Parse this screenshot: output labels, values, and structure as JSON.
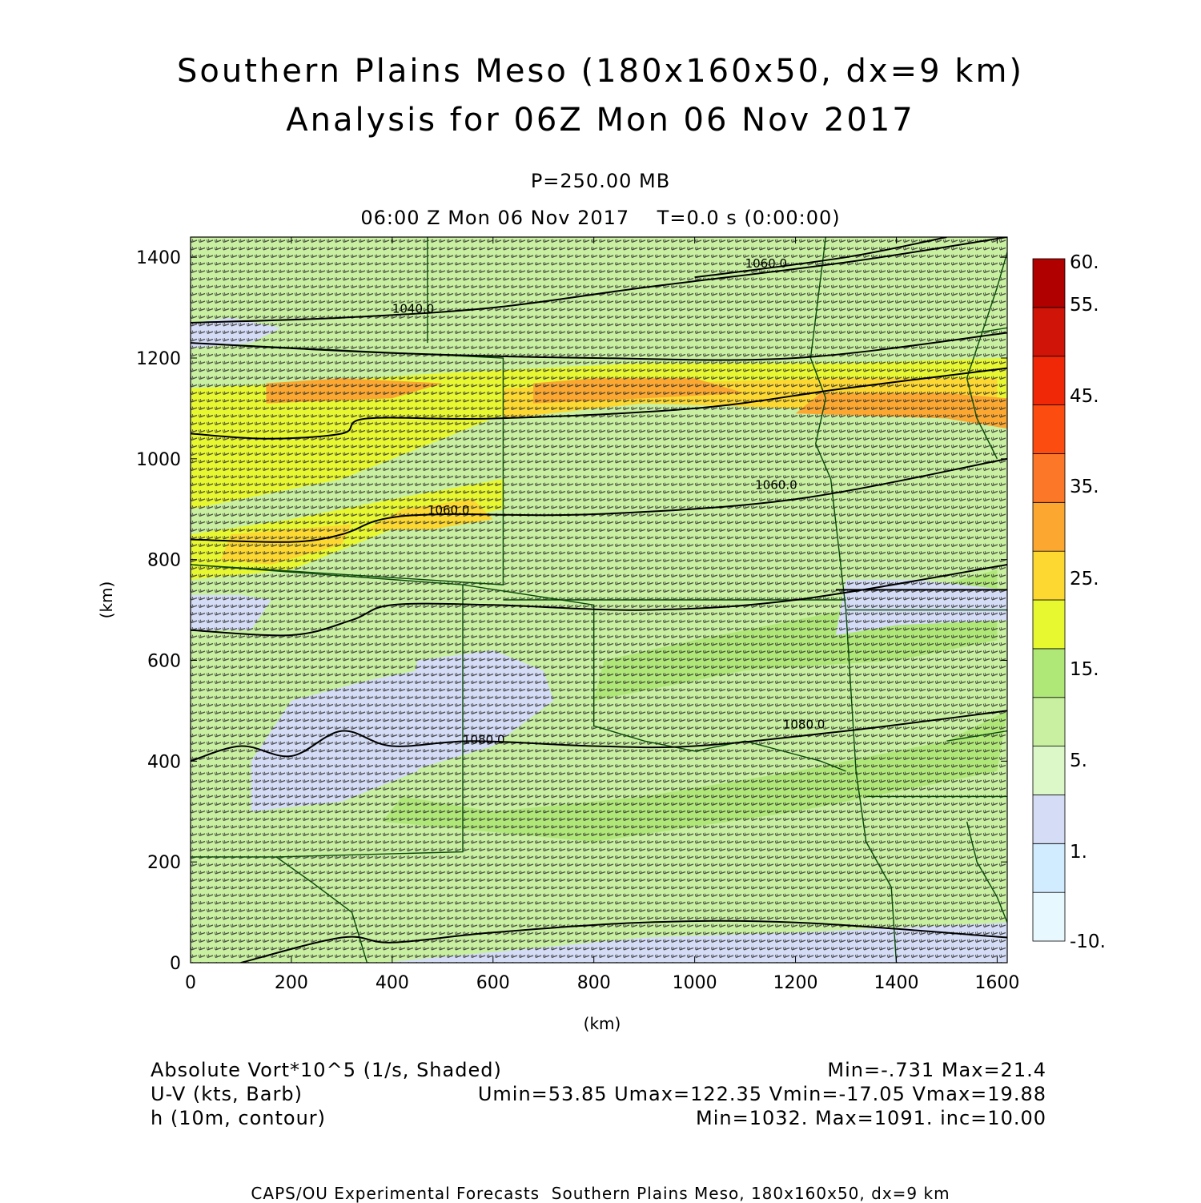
{
  "header": {
    "title_line1": "Southern Plains Meso (180x160x50, dx=9 km)",
    "title_line2": "Analysis for 06Z Mon 06 Nov 2017",
    "pressure": "P=250.00 MB",
    "time_line": "06:00 Z Mon 06 Nov 2017    T=0.0 s (0:00:00)"
  },
  "info": {
    "field1_label": "Absolute Vort*10^5 (1/s, Shaded)",
    "field1_stats": "Min=-.731 Max=21.4",
    "field2_label": "U-V (kts, Barb)",
    "field2_stats": "Umin=53.85 Umax=122.35 Vmin=-17.05 Vmax=19.88",
    "field3_label": "h (10m, contour)",
    "field3_stats": "Min=1032. Max=1091. inc=10.00"
  },
  "footer": "CAPS/OU Experimental Forecasts  Southern Plains Meso, 180x160x50, dx=9 km",
  "colors": {
    "colorbar": [
      "#e8f8ff",
      "#d2ecff",
      "#d4dcf6",
      "#dcf8c8",
      "#c8f0a0",
      "#b0e878",
      "#e8f830",
      "#fcd830",
      "#fca830",
      "#fc7828",
      "#fc4c10",
      "#f02808",
      "#d01408",
      "#b00000"
    ],
    "contour": "#000000",
    "border": "#0a4a0a",
    "barb": "#333333"
  },
  "chart_data": {
    "type": "heatmap",
    "xlabel": "(km)",
    "ylabel": "(km)",
    "xlim": [
      0,
      1620
    ],
    "ylim": [
      0,
      1440
    ],
    "x_ticks": [
      0,
      200,
      400,
      600,
      800,
      1000,
      1200,
      1400,
      1600
    ],
    "y_ticks": [
      0,
      200,
      400,
      600,
      800,
      1000,
      1200,
      1400
    ],
    "colorbar_labels": [
      "-10.",
      "1.",
      "5.",
      "15.",
      "25.",
      "35.",
      "45.",
      "55.",
      "60."
    ],
    "shaded_regions": [
      {
        "level": 4,
        "points": [
          [
            0,
            0
          ],
          [
            1620,
            0
          ],
          [
            1620,
            1440
          ],
          [
            0,
            1440
          ]
        ]
      },
      {
        "level": 5,
        "points": [
          [
            380,
            280
          ],
          [
            800,
            240
          ],
          [
            1200,
            300
          ],
          [
            1600,
            380
          ],
          [
            1620,
            500
          ],
          [
            1500,
            440
          ],
          [
            1200,
            380
          ],
          [
            900,
            330
          ],
          [
            600,
            300
          ],
          [
            420,
            330
          ]
        ]
      },
      {
        "level": 5,
        "points": [
          [
            800,
            520
          ],
          [
            1100,
            580
          ],
          [
            1400,
            600
          ],
          [
            1600,
            640
          ],
          [
            1600,
            780
          ],
          [
            1300,
            700
          ],
          [
            1000,
            640
          ],
          [
            820,
            600
          ]
        ]
      },
      {
        "level": 6,
        "points": [
          [
            0,
            900
          ],
          [
            300,
            960
          ],
          [
            600,
            1080
          ],
          [
            900,
            1150
          ],
          [
            1300,
            1120
          ],
          [
            1620,
            1100
          ],
          [
            1620,
            1200
          ],
          [
            1300,
            1190
          ],
          [
            900,
            1190
          ],
          [
            500,
            1170
          ],
          [
            200,
            1150
          ],
          [
            0,
            1140
          ]
        ]
      },
      {
        "level": 6,
        "points": [
          [
            0,
            760
          ],
          [
            200,
            780
          ],
          [
            400,
            860
          ],
          [
            620,
            900
          ],
          [
            620,
            960
          ],
          [
            400,
            920
          ],
          [
            200,
            880
          ],
          [
            0,
            850
          ]
        ]
      },
      {
        "level": 7,
        "points": [
          [
            60,
            800
          ],
          [
            160,
            790
          ],
          [
            300,
            830
          ],
          [
            320,
            870
          ],
          [
            200,
            860
          ],
          [
            80,
            850
          ]
        ]
      },
      {
        "level": 7,
        "points": [
          [
            620,
            1080
          ],
          [
            900,
            1110
          ],
          [
            1200,
            1100
          ],
          [
            1500,
            1090
          ],
          [
            1600,
            1070
          ],
          [
            1600,
            1160
          ],
          [
            1300,
            1160
          ],
          [
            900,
            1150
          ],
          [
            620,
            1140
          ]
        ]
      },
      {
        "level": 7,
        "points": [
          [
            350,
            860
          ],
          [
            480,
            860
          ],
          [
            600,
            880
          ],
          [
            560,
            920
          ],
          [
            420,
            900
          ]
        ]
      },
      {
        "level": 8,
        "points": [
          [
            150,
            1110
          ],
          [
            400,
            1120
          ],
          [
            500,
            1150
          ],
          [
            300,
            1160
          ],
          [
            150,
            1150
          ]
        ]
      },
      {
        "level": 8,
        "points": [
          [
            680,
            1110
          ],
          [
            900,
            1120
          ],
          [
            1100,
            1130
          ],
          [
            1000,
            1160
          ],
          [
            800,
            1160
          ],
          [
            680,
            1150
          ]
        ]
      },
      {
        "level": 8,
        "points": [
          [
            1200,
            1090
          ],
          [
            1500,
            1080
          ],
          [
            1620,
            1060
          ],
          [
            1620,
            1120
          ],
          [
            1500,
            1130
          ],
          [
            1250,
            1130
          ]
        ]
      },
      {
        "level": 2,
        "points": [
          [
            120,
            300
          ],
          [
            300,
            320
          ],
          [
            450,
            380
          ],
          [
            500,
            470
          ],
          [
            450,
            580
          ],
          [
            350,
            560
          ],
          [
            200,
            520
          ],
          [
            120,
            400
          ]
        ]
      },
      {
        "level": 2,
        "points": [
          [
            400,
            370
          ],
          [
            600,
            430
          ],
          [
            720,
            520
          ],
          [
            700,
            580
          ],
          [
            600,
            620
          ],
          [
            450,
            600
          ]
        ]
      },
      {
        "level": 2,
        "points": [
          [
            380,
            0
          ],
          [
            900,
            50
          ],
          [
            1200,
            60
          ],
          [
            1620,
            80
          ],
          [
            1620,
            0
          ]
        ]
      },
      {
        "level": 2,
        "points": [
          [
            0,
            660
          ],
          [
            120,
            660
          ],
          [
            160,
            720
          ],
          [
            100,
            730
          ],
          [
            0,
            730
          ]
        ]
      },
      {
        "level": 2,
        "points": [
          [
            0,
            1220
          ],
          [
            120,
            1230
          ],
          [
            180,
            1260
          ],
          [
            80,
            1280
          ],
          [
            0,
            1270
          ]
        ]
      },
      {
        "level": 2,
        "points": [
          [
            1280,
            650
          ],
          [
            1400,
            670
          ],
          [
            1620,
            680
          ],
          [
            1620,
            740
          ],
          [
            1440,
            760
          ],
          [
            1300,
            760
          ]
        ]
      }
    ],
    "contours": [
      {
        "label": "1040.0",
        "label_at": [
          400,
          1290
        ],
        "points": [
          [
            0,
            1270
          ],
          [
            300,
            1280
          ],
          [
            600,
            1300
          ],
          [
            900,
            1340
          ],
          [
            1300,
            1390
          ],
          [
            1620,
            1440
          ]
        ]
      },
      {
        "label": "1060.0",
        "label_at": [
          1100,
          1380
        ],
        "points": [
          [
            1000,
            1360
          ],
          [
            1300,
            1400
          ],
          [
            1500,
            1440
          ]
        ]
      },
      {
        "label": "",
        "label_at": null,
        "points": [
          [
            0,
            1230
          ],
          [
            400,
            1210
          ],
          [
            800,
            1200
          ],
          [
            1200,
            1200
          ],
          [
            1620,
            1250
          ]
        ]
      },
      {
        "label": "",
        "label_at": null,
        "points": [
          [
            0,
            1050
          ],
          [
            150,
            1040
          ],
          [
            300,
            1050
          ],
          [
            350,
            1080
          ],
          [
            600,
            1080
          ],
          [
            1000,
            1100
          ],
          [
            1300,
            1140
          ],
          [
            1620,
            1180
          ]
        ]
      },
      {
        "label": "1060.0",
        "label_at": [
          470,
          890
        ],
        "points": [
          [
            0,
            840
          ],
          [
            200,
            835
          ],
          [
            300,
            850
          ],
          [
            380,
            880
          ],
          [
            500,
            890
          ],
          [
            800,
            890
          ],
          [
            1200,
            920
          ],
          [
            1620,
            1000
          ]
        ]
      },
      {
        "label": "1060.0",
        "label_at": [
          1120,
          940
        ],
        "points": []
      },
      {
        "label": "",
        "label_at": null,
        "points": [
          [
            0,
            660
          ],
          [
            200,
            650
          ],
          [
            320,
            680
          ],
          [
            400,
            710
          ],
          [
            600,
            710
          ],
          [
            900,
            700
          ],
          [
            1200,
            720
          ],
          [
            1620,
            790
          ]
        ]
      },
      {
        "label": "",
        "label_at": null,
        "points": [
          [
            1280,
            740
          ],
          [
            1400,
            740
          ],
          [
            1620,
            740
          ]
        ]
      },
      {
        "label": "1080.0",
        "label_at": [
          540,
          435
        ],
        "points": [
          [
            0,
            400
          ],
          [
            100,
            430
          ],
          [
            200,
            410
          ],
          [
            300,
            460
          ],
          [
            400,
            430
          ],
          [
            560,
            440
          ],
          [
            800,
            430
          ],
          [
            1000,
            430
          ],
          [
            1300,
            460
          ],
          [
            1620,
            500
          ]
        ]
      },
      {
        "label": "1080.0",
        "label_at": [
          1175,
          465
        ],
        "points": []
      },
      {
        "label": "",
        "label_at": null,
        "points": [
          [
            100,
            0
          ],
          [
            300,
            50
          ],
          [
            400,
            40
          ],
          [
            600,
            60
          ],
          [
            900,
            80
          ],
          [
            1200,
            80
          ],
          [
            1620,
            50
          ]
        ]
      }
    ],
    "boundaries": [
      [
        [
          0,
          1230
        ],
        [
          620,
          1200
        ],
        [
          620,
          750
        ],
        [
          0,
          790
        ]
      ],
      [
        [
          470,
          1440
        ],
        [
          470,
          1230
        ]
      ],
      [
        [
          0,
          790
        ],
        [
          540,
          750
        ],
        [
          540,
          220
        ],
        [
          170,
          210
        ]
      ],
      [
        [
          540,
          750
        ],
        [
          800,
          710
        ],
        [
          800,
          470
        ],
        [
          900,
          440
        ],
        [
          1000,
          420
        ],
        [
          1100,
          440
        ],
        [
          1250,
          400
        ],
        [
          1300,
          380
        ]
      ],
      [
        [
          620,
          720
        ],
        [
          1300,
          720
        ]
      ],
      [
        [
          0,
          210
        ],
        [
          170,
          210
        ],
        [
          240,
          160
        ],
        [
          320,
          100
        ],
        [
          350,
          0
        ]
      ],
      [
        [
          1260,
          1440
        ],
        [
          1230,
          1200
        ],
        [
          1260,
          1120
        ],
        [
          1240,
          1030
        ],
        [
          1270,
          960
        ],
        [
          1300,
          700
        ],
        [
          1320,
          380
        ],
        [
          1340,
          240
        ],
        [
          1390,
          150
        ],
        [
          1400,
          0
        ]
      ],
      [
        [
          1300,
          700
        ],
        [
          1620,
          700
        ]
      ],
      [
        [
          1340,
          330
        ],
        [
          1620,
          330
        ]
      ],
      [
        [
          1620,
          1410
        ],
        [
          1600,
          1340
        ],
        [
          1560,
          1220
        ],
        [
          1540,
          1160
        ],
        [
          1560,
          1080
        ],
        [
          1600,
          1000
        ]
      ],
      [
        [
          1560,
          1250
        ],
        [
          1620,
          1260
        ]
      ],
      [
        [
          1540,
          280
        ],
        [
          1560,
          200
        ],
        [
          1600,
          130
        ],
        [
          1620,
          80
        ]
      ],
      [
        [
          1500,
          440
        ],
        [
          1620,
          460
        ]
      ]
    ]
  }
}
